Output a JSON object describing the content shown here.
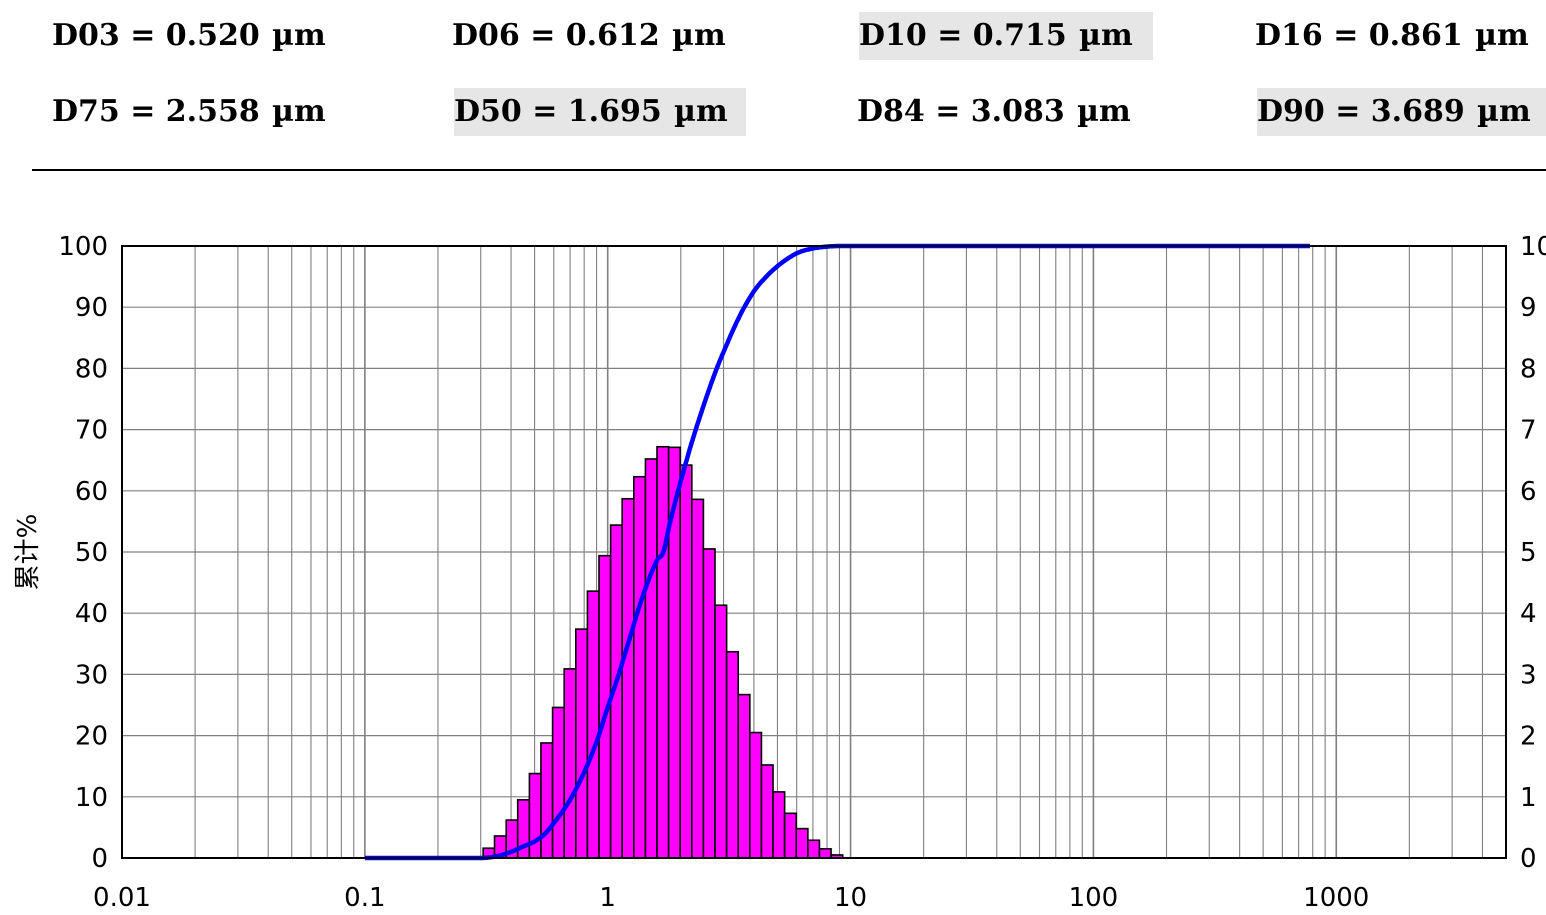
{
  "stats_row1": [
    {
      "label": "D03 = 0.520",
      "unit": "µm",
      "highlight": false
    },
    {
      "label": "D06 = 0.612",
      "unit": "µm",
      "highlight": false
    },
    {
      "label": "D10 = 0.715",
      "unit": "µm",
      "highlight": true
    },
    {
      "label": "D16 = 0.861",
      "unit": "µm",
      "highlight": false
    }
  ],
  "stats_row2": [
    {
      "label": "D75 = 2.558",
      "unit": "µm",
      "highlight": false
    },
    {
      "label": "D50 = 1.695",
      "unit": "µm",
      "highlight": true
    },
    {
      "label": "D84 = 3.083",
      "unit": "µm",
      "highlight": false
    },
    {
      "label": "D90 = 3.689",
      "unit": "µm",
      "highlight": true
    }
  ],
  "chart_data": {
    "type": "bar",
    "xscale": "log",
    "xlim": [
      0.01,
      5000
    ],
    "ylim": [
      0,
      100
    ],
    "y2lim": [
      0,
      10
    ],
    "ylabel": "累计%",
    "x_ticks": [
      "0.01",
      "0.1",
      "1",
      "10",
      "100",
      "1000"
    ],
    "y_ticks": [
      "0",
      "10",
      "20",
      "30",
      "40",
      "50",
      "60",
      "70",
      "80",
      "90",
      "100"
    ],
    "y2_ticks": [
      "0",
      "1",
      "2",
      "3",
      "4",
      "5",
      "6",
      "7",
      "8",
      "9",
      "10"
    ],
    "grid": true,
    "colors": {
      "bars": "#ff00ff",
      "bar_edge": "#000000",
      "cumulative": "#0000ff",
      "grid": "#808080"
    },
    "histogram_edges": [
      0.307,
      0.342,
      0.382,
      0.426,
      0.476,
      0.531,
      0.593,
      0.662,
      0.739,
      0.825,
      0.921,
      1.028,
      1.147,
      1.281,
      1.43,
      1.596,
      1.782,
      1.989,
      2.22,
      2.478,
      2.766,
      3.088,
      3.447,
      3.848,
      4.296,
      4.795,
      5.353,
      5.976,
      6.671,
      7.446,
      8.312,
      9.279
    ],
    "histogram_values": [
      0.16,
      0.36,
      0.62,
      0.95,
      1.38,
      1.88,
      2.46,
      3.09,
      3.74,
      4.36,
      4.94,
      5.44,
      5.87,
      6.23,
      6.52,
      6.72,
      6.71,
      6.42,
      5.86,
      5.05,
      4.13,
      3.37,
      2.67,
      2.05,
      1.52,
      1.08,
      0.73,
      0.48,
      0.29,
      0.15,
      0.05
    ],
    "cumulative": {
      "x": [
        0.1,
        0.2,
        0.3,
        0.35,
        0.4,
        0.45,
        0.5,
        0.55,
        0.6,
        0.7,
        0.8,
        0.9,
        1.0,
        1.1,
        1.2,
        1.4,
        1.6,
        1.695,
        1.8,
        2.0,
        2.2,
        2.5,
        2.8,
        3.0,
        3.5,
        4.0,
        4.5,
        5.0,
        6.0,
        7.0,
        8.0,
        9.0,
        10.0,
        20.0,
        780.0
      ],
      "y": [
        0,
        0,
        0.0,
        0.3,
        1.0,
        1.9,
        2.7,
        3.9,
        5.7,
        9.5,
        14.0,
        19.0,
        24.6,
        29.5,
        34.4,
        43.0,
        48.7,
        50.0,
        54.6,
        61.6,
        67.4,
        74.3,
        79.8,
        82.7,
        88.6,
        92.6,
        95.0,
        96.7,
        98.8,
        99.6,
        99.9,
        100,
        100,
        100,
        100
      ]
    }
  }
}
